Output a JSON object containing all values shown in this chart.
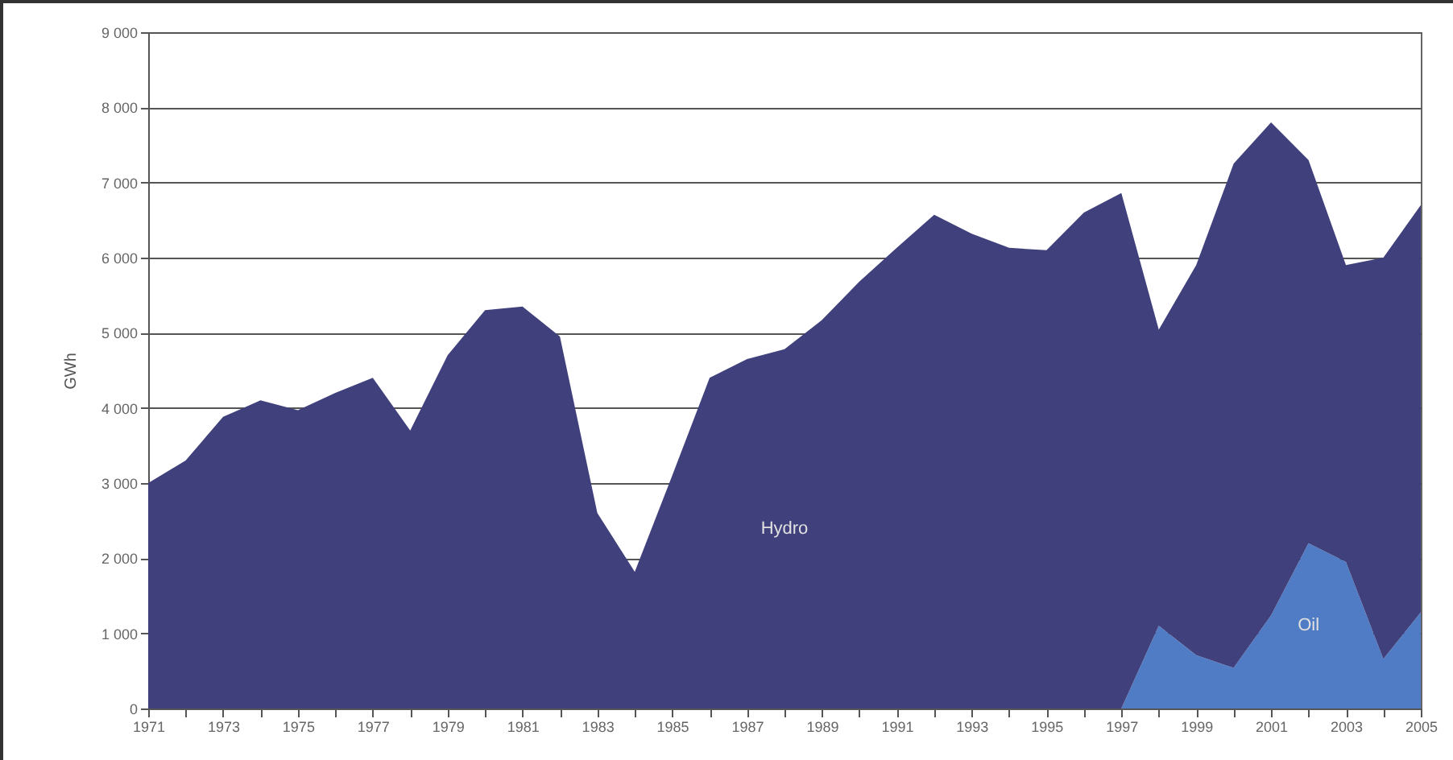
{
  "chart_data": {
    "type": "area",
    "stacked": true,
    "ylabel": "GWh",
    "categories": [
      "1971",
      null,
      "1973",
      null,
      "1975",
      null,
      "1977",
      null,
      "1979",
      null,
      "1981",
      null,
      "1983",
      null,
      "1985",
      null,
      "1987",
      null,
      "1989",
      null,
      "1991",
      null,
      "1993",
      null,
      "1995",
      null,
      "1997",
      null,
      "1999",
      null,
      "2001",
      null,
      "2003",
      null,
      "2005"
    ],
    "series": [
      {
        "name": "Oil",
        "color": "#4f7cc4",
        "values": [
          0,
          0,
          0,
          0,
          0,
          0,
          0,
          0,
          0,
          0,
          0,
          0,
          0,
          0,
          0,
          0,
          0,
          0,
          0,
          0,
          0,
          0,
          0,
          0,
          0,
          0,
          0,
          1100,
          710,
          540,
          1240,
          2200,
          1950,
          660,
          1280
        ]
      },
      {
        "name": "Hydro",
        "color": "#40407c",
        "values": [
          3000,
          3300,
          3880,
          4100,
          3970,
          4200,
          4400,
          3700,
          4700,
          5300,
          5350,
          4950,
          2600,
          1820,
          3100,
          4400,
          4650,
          4780,
          5170,
          5680,
          6130,
          6570,
          6320,
          6130,
          6100,
          6600,
          6860,
          3940,
          5190,
          6710,
          6560,
          5100,
          3950,
          5340,
          5420
        ]
      }
    ],
    "ylim": [
      0,
      9000
    ],
    "yticks": [
      {
        "value": 0,
        "label": "0"
      },
      {
        "value": 1000,
        "label": "1 000"
      },
      {
        "value": 2000,
        "label": "2 000"
      },
      {
        "value": 3000,
        "label": "3 000"
      },
      {
        "value": 4000,
        "label": "4 000"
      },
      {
        "value": 5000,
        "label": "5 000"
      },
      {
        "value": 6000,
        "label": "6 000"
      },
      {
        "value": 7000,
        "label": "7 000"
      },
      {
        "value": 8000,
        "label": "8 000"
      },
      {
        "value": 9000,
        "label": "9 000"
      }
    ],
    "grid": "y"
  }
}
